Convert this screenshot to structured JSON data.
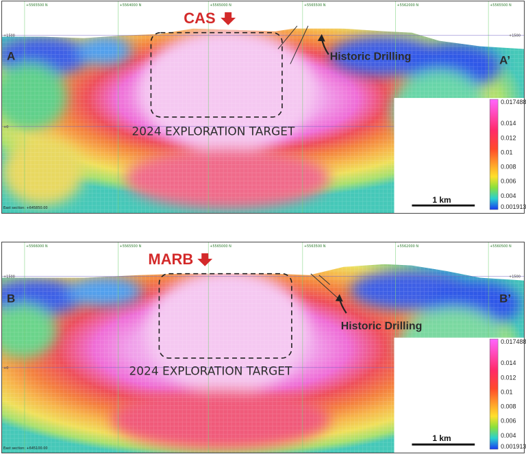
{
  "colors": {
    "low": "#3650e0",
    "mid": "#f5e24a",
    "high": "#f070e0",
    "peak": "#f7c9f3",
    "marker": "#d32a2a",
    "label": "#2b2b2b"
  },
  "panels": [
    {
      "id": "A",
      "site": "CAS",
      "left_end": "A",
      "right_end": "A’",
      "target_label": "2024 EXPLORATION TARGET",
      "drill_label": "Historic Drilling",
      "footer": "East section: +645850.00",
      "elev_label_left": "+1500",
      "elev_label_right": "+1500",
      "elev_label_mid": "+0",
      "grid_labels": [
        "+5565500 N",
        "+5564000 N",
        "+5565000 N",
        "+5565500 N",
        "+5562000 N",
        "+5565500 N"
      ],
      "legend": {
        "max": "0.017488",
        "ticks": [
          "0.014",
          "0.012",
          "0.01",
          "0.008",
          "0.006",
          "0.004"
        ],
        "min": "0.001913"
      },
      "scale_label": "1 km"
    },
    {
      "id": "B",
      "site": "MARB",
      "left_end": "B",
      "right_end": "B’",
      "target_label": "2024 EXPLORATION TARGET",
      "drill_label": "Historic Drilling",
      "footer": "East section: +645100.00",
      "elev_label_left": "+1500",
      "elev_label_right": "+1500",
      "elev_label_mid": "+0",
      "grid_labels": [
        "+5566000 N",
        "+5565500 N",
        "+5565000 N",
        "+5563500 N",
        "+5562000 N",
        "+5560500 N"
      ],
      "legend": {
        "max": "0.017488",
        "ticks": [
          "0.014",
          "0.012",
          "0.01",
          "0.008",
          "0.006",
          "0.004"
        ],
        "min": "0.001913"
      },
      "scale_label": "1 km"
    }
  ]
}
